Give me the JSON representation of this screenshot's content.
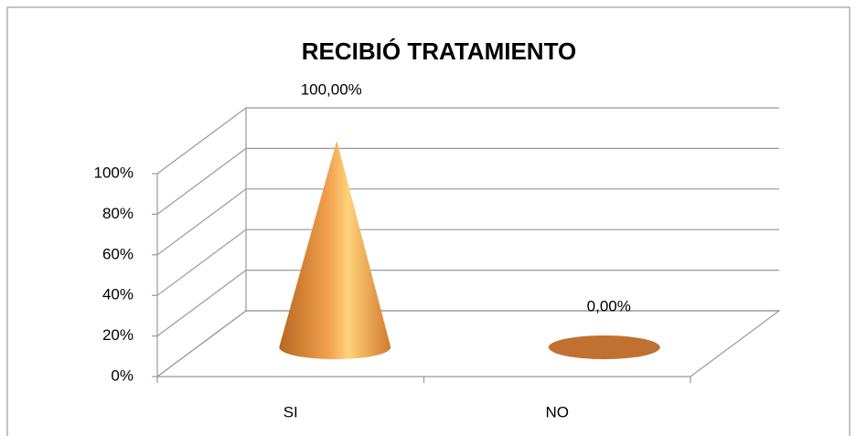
{
  "chart_data": {
    "type": "cone",
    "title": "RECIBIÓ TRATAMIENTO",
    "categories": [
      "SI",
      "NO"
    ],
    "values": [
      100,
      0
    ],
    "value_labels": [
      "100,00%",
      "0,00%"
    ],
    "color": "#e8913a",
    "ylim": [
      0,
      100
    ],
    "yticks": [
      {
        "value": 0,
        "label": "0%"
      },
      {
        "value": 20,
        "label": "20%"
      },
      {
        "value": 40,
        "label": "40%"
      },
      {
        "value": 60,
        "label": "60%"
      },
      {
        "value": 80,
        "label": "80%"
      },
      {
        "value": 100,
        "label": "100%"
      }
    ],
    "grid": true
  }
}
